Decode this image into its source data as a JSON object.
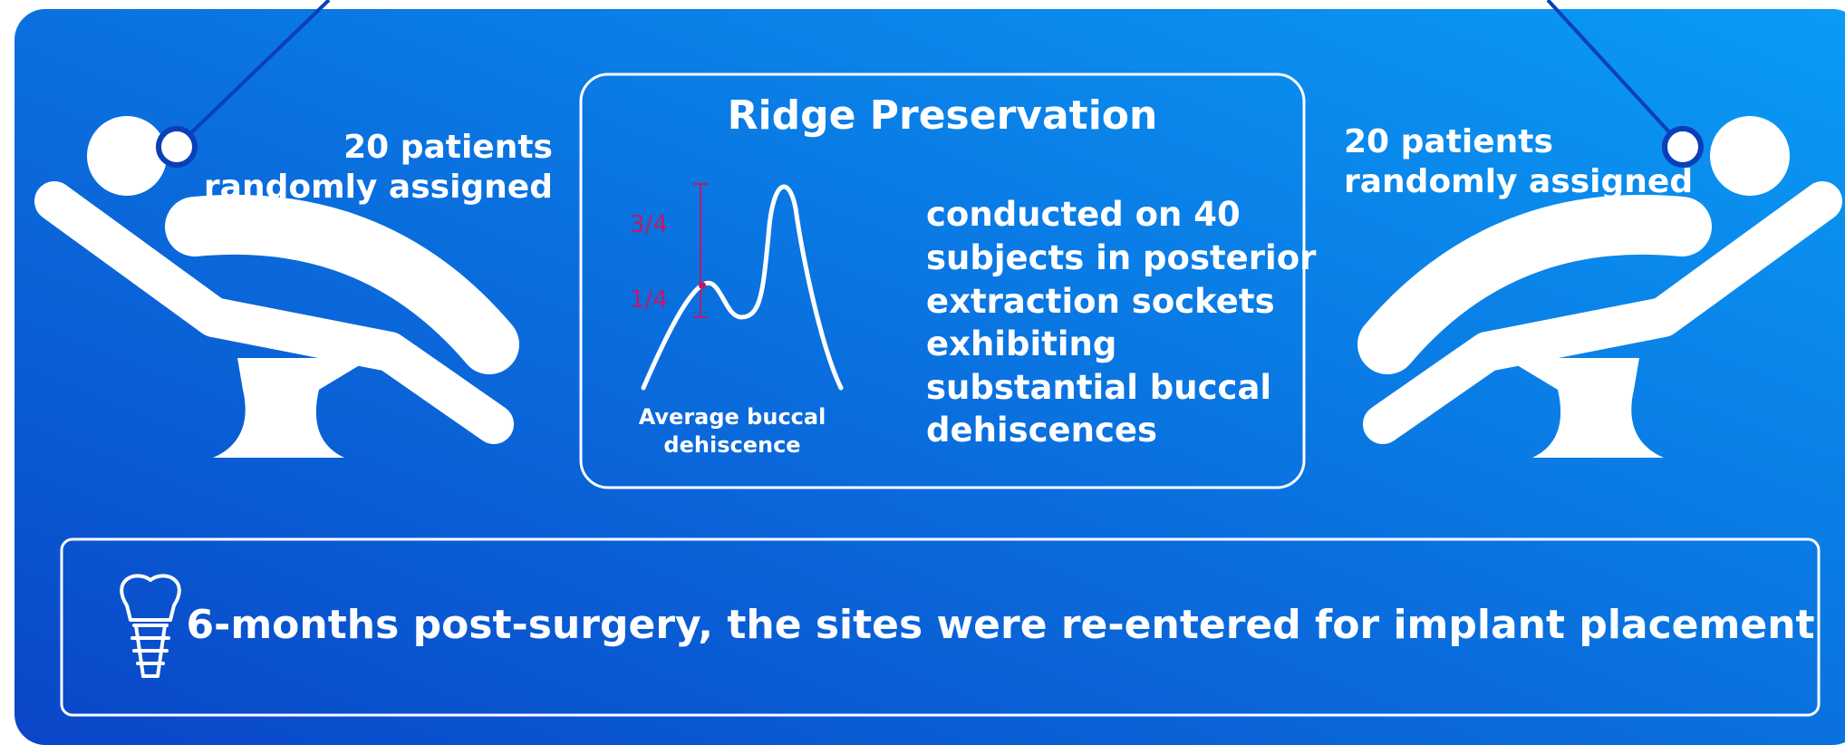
{
  "left_label": {
    "lines": [
      "20 patients",
      "randomly assigned"
    ]
  },
  "right_label": {
    "lines": [
      "20 patients",
      "randomly assigned"
    ]
  },
  "center": {
    "title": "Ridge Preservation",
    "scale_labels": [
      "3/4",
      "1/4"
    ],
    "caption_lines": [
      "Average buccal",
      "dehiscence"
    ],
    "description_lines": [
      "conducted on 40",
      "subjects in posterior",
      "extraction sockets",
      "exhibiting",
      "substantial buccal",
      "dehiscences"
    ]
  },
  "footer": {
    "text": "6-months post-surgery, the sites were re-entered for implant placement"
  }
}
